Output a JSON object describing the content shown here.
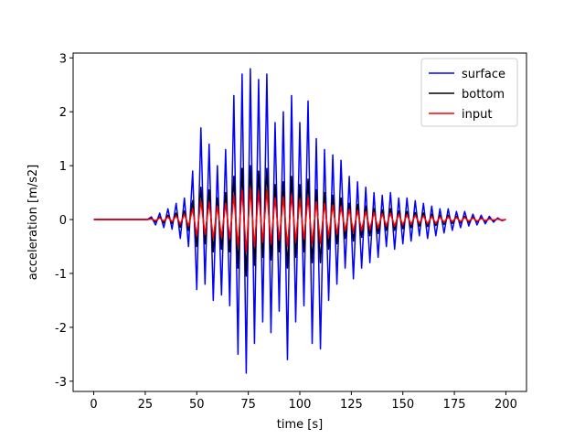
{
  "chart_data": {
    "type": "line",
    "xlabel": "time [s]",
    "ylabel": "acceleration [m/s2]",
    "xlim": [
      -10,
      210
    ],
    "ylim": [
      -3.19,
      3.09
    ],
    "xticks": [
      0,
      25,
      50,
      75,
      100,
      125,
      150,
      175,
      200
    ],
    "yticks": [
      -3,
      -2,
      -1,
      0,
      1,
      2,
      3
    ],
    "legend": "upper right",
    "x": [
      0,
      2,
      4,
      6,
      8,
      10,
      12,
      14,
      16,
      18,
      20,
      22,
      24,
      26,
      28,
      30,
      32,
      34,
      36,
      38,
      40,
      42,
      44,
      46,
      48,
      50,
      52,
      54,
      56,
      58,
      60,
      62,
      64,
      66,
      68,
      70,
      72,
      74,
      76,
      78,
      80,
      82,
      84,
      86,
      88,
      90,
      92,
      94,
      96,
      98,
      100,
      102,
      104,
      106,
      108,
      110,
      112,
      114,
      116,
      118,
      120,
      122,
      124,
      126,
      128,
      130,
      132,
      134,
      136,
      138,
      140,
      142,
      144,
      146,
      148,
      150,
      152,
      154,
      156,
      158,
      160,
      162,
      164,
      166,
      168,
      170,
      172,
      174,
      176,
      178,
      180,
      182,
      184,
      186,
      188,
      190,
      192,
      194,
      196,
      198,
      200
    ],
    "series": [
      {
        "name": "surface",
        "color": "#0000ff",
        "values": [
          0,
          0,
          0,
          0,
          0,
          0,
          0,
          0,
          0,
          0,
          0,
          0,
          0,
          0,
          0.05,
          -0.1,
          0.12,
          -0.15,
          0.2,
          -0.18,
          0.3,
          -0.35,
          0.4,
          -0.5,
          0.9,
          -1.3,
          1.7,
          -1.2,
          1.4,
          -1.5,
          1.0,
          -1.4,
          1.3,
          -1.6,
          2.3,
          -2.5,
          2.7,
          -2.85,
          2.8,
          -2.3,
          2.6,
          -1.9,
          2.7,
          -2.1,
          1.8,
          -1.7,
          2.0,
          -2.6,
          2.3,
          -1.9,
          1.8,
          -1.6,
          2.2,
          -2.3,
          1.5,
          -2.4,
          1.3,
          -1.5,
          1.2,
          -1.2,
          1.1,
          -0.9,
          0.8,
          -1.1,
          0.7,
          -0.9,
          0.6,
          -0.8,
          0.5,
          -0.7,
          0.45,
          -0.5,
          0.5,
          -0.55,
          0.4,
          -0.45,
          0.4,
          -0.4,
          0.35,
          -0.3,
          0.3,
          -0.35,
          0.25,
          -0.3,
          0.2,
          -0.25,
          0.2,
          -0.2,
          0.15,
          -0.15,
          0.15,
          -0.12,
          0.1,
          -0.1,
          0.08,
          -0.08,
          0.06,
          -0.05,
          0.03,
          -0.02,
          0
        ]
      },
      {
        "name": "bottom",
        "color": "#000000",
        "values": [
          0,
          0,
          0,
          0,
          0,
          0,
          0,
          0,
          0,
          0,
          0,
          0,
          0,
          0,
          0.02,
          -0.04,
          0.05,
          -0.06,
          0.08,
          -0.07,
          0.12,
          -0.14,
          0.16,
          -0.2,
          0.35,
          -0.5,
          0.6,
          -0.45,
          0.55,
          -0.6,
          0.4,
          -0.55,
          0.5,
          -0.6,
          0.8,
          -0.9,
          0.95,
          -1.05,
          1.0,
          -0.85,
          0.9,
          -0.7,
          0.95,
          -0.75,
          0.65,
          -0.6,
          0.7,
          -0.9,
          0.8,
          -0.7,
          0.65,
          -0.6,
          0.75,
          -0.8,
          0.55,
          -0.8,
          0.5,
          -0.55,
          0.45,
          -0.45,
          0.4,
          -0.35,
          0.3,
          -0.4,
          0.28,
          -0.33,
          0.25,
          -0.3,
          0.2,
          -0.26,
          0.18,
          -0.2,
          0.2,
          -0.2,
          0.16,
          -0.17,
          0.15,
          -0.15,
          0.13,
          -0.12,
          0.12,
          -0.13,
          0.1,
          -0.11,
          0.08,
          -0.09,
          0.08,
          -0.07,
          0.06,
          -0.06,
          0.06,
          -0.05,
          0.04,
          -0.04,
          0.03,
          -0.03,
          0.02,
          -0.02,
          0.01,
          -0.01,
          0
        ]
      },
      {
        "name": "input",
        "color": "#ff0000",
        "values": [
          0,
          0,
          0,
          0,
          0,
          0,
          0,
          0,
          0,
          0,
          0,
          0,
          0,
          0,
          0.01,
          -0.02,
          0.03,
          -0.03,
          0.05,
          -0.04,
          0.07,
          -0.08,
          0.1,
          -0.12,
          0.2,
          -0.3,
          0.35,
          -0.28,
          0.32,
          -0.35,
          0.25,
          -0.33,
          0.3,
          -0.36,
          0.45,
          -0.5,
          0.55,
          -0.6,
          0.58,
          -0.5,
          0.52,
          -0.42,
          0.55,
          -0.45,
          0.4,
          -0.38,
          0.42,
          -0.5,
          0.46,
          -0.4,
          0.38,
          -0.36,
          0.42,
          -0.45,
          0.33,
          -0.45,
          0.3,
          -0.32,
          0.27,
          -0.27,
          0.24,
          -0.21,
          0.19,
          -0.23,
          0.17,
          -0.2,
          0.15,
          -0.18,
          0.13,
          -0.16,
          0.11,
          -0.12,
          0.12,
          -0.12,
          0.1,
          -0.1,
          0.09,
          -0.09,
          0.08,
          -0.07,
          0.07,
          -0.08,
          0.06,
          -0.07,
          0.05,
          -0.05,
          0.05,
          -0.04,
          0.04,
          -0.04,
          0.04,
          -0.03,
          0.03,
          -0.03,
          0.02,
          -0.02,
          0.01,
          -0.01,
          0.01,
          -0.01,
          0
        ]
      }
    ]
  }
}
